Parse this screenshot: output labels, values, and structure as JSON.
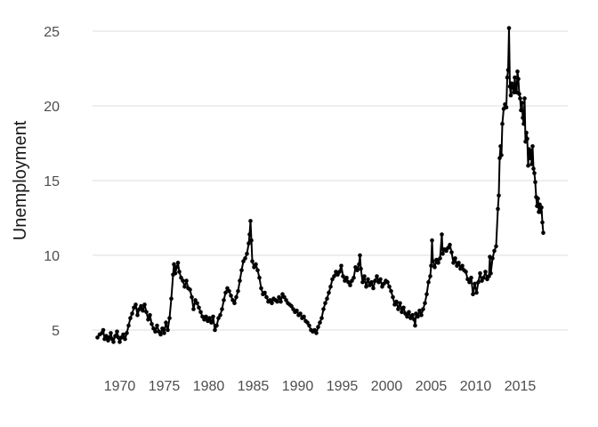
{
  "chart_data": {
    "type": "line",
    "title": "",
    "xlabel": "",
    "ylabel": "Unemployment",
    "xlim": [
      1967.5,
      2015.3
    ],
    "ylim": [
      3.9,
      26.1
    ],
    "x_ticks": [
      1970,
      1975,
      1980,
      1985,
      1990,
      1995,
      2000,
      2005,
      2010,
      2015
    ],
    "y_ticks": [
      5,
      10,
      15,
      20,
      25
    ],
    "grid": "horizontal",
    "legend": "none",
    "series": [
      {
        "markers": true,
        "color": "#000000",
        "points": [
          [
            1967.5,
            4.5
          ],
          [
            1967.75,
            4.7
          ],
          [
            1968.0,
            4.8
          ],
          [
            1968.15,
            5.0
          ],
          [
            1968.3,
            4.4
          ],
          [
            1968.5,
            4.6
          ],
          [
            1968.7,
            4.3
          ],
          [
            1968.85,
            4.5
          ],
          [
            1969.0,
            4.8
          ],
          [
            1969.15,
            4.4
          ],
          [
            1969.3,
            4.2
          ],
          [
            1969.5,
            4.6
          ],
          [
            1969.7,
            4.9
          ],
          [
            1969.85,
            4.5
          ],
          [
            1970.0,
            4.2
          ],
          [
            1970.2,
            4.5
          ],
          [
            1970.4,
            4.7
          ],
          [
            1970.6,
            4.4
          ],
          [
            1970.8,
            4.8
          ],
          [
            1971.0,
            5.3
          ],
          [
            1971.2,
            5.8
          ],
          [
            1971.4,
            6.1
          ],
          [
            1971.6,
            6.5
          ],
          [
            1971.8,
            6.7
          ],
          [
            1972.0,
            6.0
          ],
          [
            1972.2,
            6.4
          ],
          [
            1972.4,
            6.6
          ],
          [
            1972.6,
            6.3
          ],
          [
            1972.8,
            6.7
          ],
          [
            1973.0,
            6.2
          ],
          [
            1973.2,
            5.7
          ],
          [
            1973.4,
            6.0
          ],
          [
            1973.6,
            5.4
          ],
          [
            1973.8,
            5.1
          ],
          [
            1974.0,
            4.9
          ],
          [
            1974.2,
            5.3
          ],
          [
            1974.4,
            4.9
          ],
          [
            1974.6,
            4.7
          ],
          [
            1974.8,
            5.1
          ],
          [
            1975.0,
            4.8
          ],
          [
            1975.2,
            5.5
          ],
          [
            1975.4,
            5.0
          ],
          [
            1975.6,
            5.8
          ],
          [
            1975.8,
            7.1
          ],
          [
            1976.0,
            8.7
          ],
          [
            1976.1,
            9.4
          ],
          [
            1976.25,
            8.8
          ],
          [
            1976.4,
            9.2
          ],
          [
            1976.55,
            9.5
          ],
          [
            1976.7,
            8.9
          ],
          [
            1976.9,
            8.5
          ],
          [
            1977.1,
            8.3
          ],
          [
            1977.3,
            7.9
          ],
          [
            1977.5,
            8.3
          ],
          [
            1977.7,
            7.8
          ],
          [
            1977.9,
            7.7
          ],
          [
            1978.1,
            7.2
          ],
          [
            1978.3,
            6.4
          ],
          [
            1978.5,
            7.0
          ],
          [
            1978.7,
            6.8
          ],
          [
            1978.9,
            6.5
          ],
          [
            1979.1,
            6.2
          ],
          [
            1979.3,
            5.9
          ],
          [
            1979.5,
            5.7
          ],
          [
            1979.7,
            5.9
          ],
          [
            1979.9,
            5.6
          ],
          [
            1980.1,
            5.8
          ],
          [
            1980.3,
            5.5
          ],
          [
            1980.5,
            5.9
          ],
          [
            1980.7,
            5.0
          ],
          [
            1980.9,
            5.3
          ],
          [
            1981.1,
            5.8
          ],
          [
            1981.3,
            6.0
          ],
          [
            1981.5,
            6.4
          ],
          [
            1981.7,
            7.0
          ],
          [
            1981.9,
            7.5
          ],
          [
            1982.1,
            7.8
          ],
          [
            1982.3,
            7.6
          ],
          [
            1982.5,
            7.3
          ],
          [
            1982.7,
            7.0
          ],
          [
            1982.9,
            6.8
          ],
          [
            1983.1,
            7.2
          ],
          [
            1983.3,
            7.6
          ],
          [
            1983.5,
            8.3
          ],
          [
            1983.7,
            9.0
          ],
          [
            1983.9,
            9.6
          ],
          [
            1984.1,
            9.8
          ],
          [
            1984.3,
            10.1
          ],
          [
            1984.5,
            10.8
          ],
          [
            1984.6,
            11.4
          ],
          [
            1984.7,
            12.3
          ],
          [
            1984.8,
            11.0
          ],
          [
            1984.9,
            9.6
          ],
          [
            1985.1,
            9.2
          ],
          [
            1985.3,
            9.4
          ],
          [
            1985.5,
            9.0
          ],
          [
            1985.7,
            8.5
          ],
          [
            1985.9,
            7.8
          ],
          [
            1986.1,
            7.4
          ],
          [
            1986.3,
            7.5
          ],
          [
            1986.5,
            7.2
          ],
          [
            1986.7,
            6.9
          ],
          [
            1986.9,
            7.0
          ],
          [
            1987.1,
            6.8
          ],
          [
            1987.3,
            7.1
          ],
          [
            1987.5,
            7.0
          ],
          [
            1987.7,
            6.9
          ],
          [
            1987.9,
            7.2
          ],
          [
            1988.1,
            6.9
          ],
          [
            1988.3,
            7.4
          ],
          [
            1988.5,
            7.2
          ],
          [
            1988.7,
            7.0
          ],
          [
            1988.9,
            6.8
          ],
          [
            1989.1,
            6.7
          ],
          [
            1989.3,
            6.6
          ],
          [
            1989.5,
            6.4
          ],
          [
            1989.7,
            6.2
          ],
          [
            1989.9,
            6.3
          ],
          [
            1990.1,
            6.0
          ],
          [
            1990.3,
            6.1
          ],
          [
            1990.5,
            5.8
          ],
          [
            1990.7,
            5.9
          ],
          [
            1990.9,
            5.6
          ],
          [
            1991.1,
            5.5
          ],
          [
            1991.3,
            5.3
          ],
          [
            1991.5,
            5.0
          ],
          [
            1991.7,
            4.9
          ],
          [
            1991.9,
            5.0
          ],
          [
            1992.1,
            4.8
          ],
          [
            1992.3,
            5.2
          ],
          [
            1992.5,
            5.5
          ],
          [
            1992.7,
            5.8
          ],
          [
            1992.9,
            6.4
          ],
          [
            1993.1,
            6.8
          ],
          [
            1993.3,
            7.1
          ],
          [
            1993.5,
            7.5
          ],
          [
            1993.7,
            7.9
          ],
          [
            1993.9,
            8.4
          ],
          [
            1994.1,
            8.6
          ],
          [
            1994.3,
            8.9
          ],
          [
            1994.5,
            8.7
          ],
          [
            1994.7,
            8.9
          ],
          [
            1994.9,
            9.3
          ],
          [
            1995.1,
            8.6
          ],
          [
            1995.3,
            8.3
          ],
          [
            1995.5,
            8.5
          ],
          [
            1995.7,
            8.2
          ],
          [
            1995.9,
            8.0
          ],
          [
            1996.1,
            8.3
          ],
          [
            1996.3,
            8.5
          ],
          [
            1996.5,
            9.2
          ],
          [
            1996.7,
            9.0
          ],
          [
            1996.9,
            9.4
          ],
          [
            1997.0,
            10.0
          ],
          [
            1997.1,
            9.1
          ],
          [
            1997.3,
            8.2
          ],
          [
            1997.5,
            8.6
          ],
          [
            1997.7,
            7.9
          ],
          [
            1997.9,
            8.4
          ],
          [
            1998.1,
            8.0
          ],
          [
            1998.3,
            8.2
          ],
          [
            1998.5,
            7.8
          ],
          [
            1998.7,
            8.3
          ],
          [
            1998.9,
            8.6
          ],
          [
            1999.1,
            8.2
          ],
          [
            1999.3,
            8.4
          ],
          [
            1999.5,
            7.9
          ],
          [
            1999.7,
            8.1
          ],
          [
            1999.9,
            8.3
          ],
          [
            2000.1,
            8.2
          ],
          [
            2000.3,
            7.9
          ],
          [
            2000.5,
            7.6
          ],
          [
            2000.7,
            7.2
          ],
          [
            2000.9,
            6.7
          ],
          [
            2001.1,
            6.9
          ],
          [
            2001.3,
            6.4
          ],
          [
            2001.5,
            6.8
          ],
          [
            2001.7,
            6.2
          ],
          [
            2001.9,
            6.5
          ],
          [
            2002.1,
            6.1
          ],
          [
            2002.3,
            5.9
          ],
          [
            2002.5,
            6.2
          ],
          [
            2002.7,
            5.8
          ],
          [
            2002.9,
            6.0
          ],
          [
            2003.1,
            5.7
          ],
          [
            2003.2,
            5.3
          ],
          [
            2003.3,
            6.1
          ],
          [
            2003.5,
            5.9
          ],
          [
            2003.7,
            6.3
          ],
          [
            2003.9,
            6.0
          ],
          [
            2004.1,
            6.4
          ],
          [
            2004.3,
            6.8
          ],
          [
            2004.5,
            7.4
          ],
          [
            2004.7,
            8.2
          ],
          [
            2004.9,
            8.6
          ],
          [
            2005.0,
            9.3
          ],
          [
            2005.1,
            11.0
          ],
          [
            2005.2,
            9.6
          ],
          [
            2005.4,
            9.2
          ],
          [
            2005.6,
            9.7
          ],
          [
            2005.8,
            9.5
          ],
          [
            2006.0,
            9.8
          ],
          [
            2006.2,
            11.4
          ],
          [
            2006.3,
            10.1
          ],
          [
            2006.5,
            10.4
          ],
          [
            2006.7,
            10.3
          ],
          [
            2006.9,
            10.5
          ],
          [
            2007.1,
            10.7
          ],
          [
            2007.3,
            10.2
          ],
          [
            2007.5,
            9.5
          ],
          [
            2007.7,
            9.8
          ],
          [
            2007.9,
            9.3
          ],
          [
            2008.1,
            9.5
          ],
          [
            2008.3,
            9.1
          ],
          [
            2008.5,
            9.3
          ],
          [
            2008.7,
            9.0
          ],
          [
            2008.9,
            8.9
          ],
          [
            2009.1,
            8.4
          ],
          [
            2009.3,
            8.2
          ],
          [
            2009.5,
            8.5
          ],
          [
            2009.7,
            7.4
          ],
          [
            2009.9,
            8.1
          ],
          [
            2010.1,
            7.5
          ],
          [
            2010.3,
            8.2
          ],
          [
            2010.5,
            8.8
          ],
          [
            2010.7,
            8.3
          ],
          [
            2010.9,
            8.5
          ],
          [
            2011.1,
            8.9
          ],
          [
            2011.3,
            8.4
          ],
          [
            2011.5,
            8.6
          ],
          [
            2011.6,
            9.9
          ],
          [
            2011.7,
            8.8
          ],
          [
            2011.9,
            9.8
          ],
          [
            2012.1,
            10.3
          ],
          [
            2012.3,
            10.6
          ],
          [
            2012.5,
            13.1
          ],
          [
            2012.6,
            14.0
          ],
          [
            2012.7,
            16.5
          ],
          [
            2012.8,
            17.3
          ],
          [
            2012.9,
            16.7
          ],
          [
            2013.0,
            18.8
          ],
          [
            2013.15,
            19.8
          ],
          [
            2013.3,
            20.1
          ],
          [
            2013.45,
            19.9
          ],
          [
            2013.55,
            21.9
          ],
          [
            2013.65,
            22.4
          ],
          [
            2013.75,
            25.2
          ],
          [
            2013.85,
            21.3
          ],
          [
            2013.95,
            20.7
          ],
          [
            2014.05,
            21.5
          ],
          [
            2014.15,
            21.3
          ],
          [
            2014.3,
            20.9
          ],
          [
            2014.4,
            21.9
          ],
          [
            2014.5,
            21.1
          ],
          [
            2014.6,
            20.9
          ],
          [
            2014.7,
            22.3
          ],
          [
            2014.8,
            21.8
          ],
          [
            2014.9,
            20.8
          ],
          [
            2015.0,
            20.5
          ],
          [
            2015.1,
            19.7
          ],
          [
            2015.2,
            20.2
          ],
          [
            2015.3,
            19.2
          ],
          [
            2015.4,
            18.8
          ],
          [
            2015.5,
            20.5
          ],
          [
            2015.6,
            17.6
          ],
          [
            2015.7,
            18.2
          ],
          [
            2015.8,
            17.8
          ],
          [
            2015.9,
            16.0
          ],
          [
            2016.0,
            17.1
          ],
          [
            2016.1,
            16.5
          ],
          [
            2016.2,
            17.0
          ],
          [
            2016.3,
            16.1
          ],
          [
            2016.4,
            17.3
          ],
          [
            2016.5,
            15.8
          ],
          [
            2016.6,
            15.5
          ],
          [
            2016.7,
            14.9
          ],
          [
            2016.8,
            13.9
          ],
          [
            2016.9,
            13.3
          ],
          [
            2017.0,
            13.8
          ],
          [
            2017.1,
            12.9
          ],
          [
            2017.2,
            13.4
          ],
          [
            2017.3,
            12.9
          ],
          [
            2017.4,
            13.2
          ],
          [
            2017.5,
            12.2
          ],
          [
            2017.6,
            11.5
          ]
        ]
      }
    ]
  }
}
